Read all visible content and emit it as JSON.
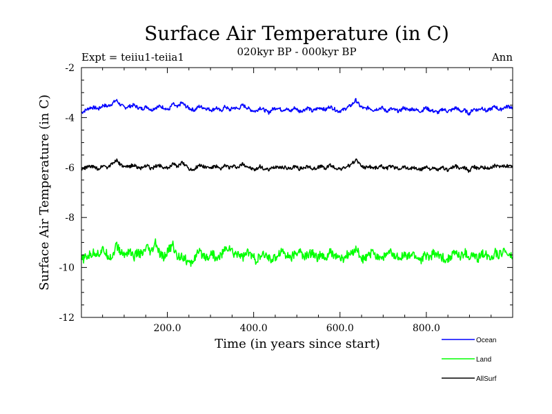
{
  "chart_data": {
    "type": "line",
    "title": "Surface Air Temperature (in C)",
    "subtitle": "020kyr BP - 000kyr BP",
    "annotation_left": "Expt = teiiu1-teiia1",
    "annotation_right": "Ann",
    "xlabel": "Time (in years since start)",
    "ylabel": "Surface Air Temperature (in C)",
    "xlim": [
      1,
      1000
    ],
    "ylim": [
      -12,
      -2
    ],
    "x_ticks": [
      "200.0",
      "400.0",
      "600.0",
      "800.0"
    ],
    "y_ticks": [
      "-2",
      "-4",
      "-6",
      "-8",
      "-10",
      "-12"
    ],
    "grid": false,
    "legend_position": "bottom-right",
    "series": [
      {
        "name": "Ocean",
        "color": "#0000ff",
        "values": [
          -3.8,
          -3.7,
          -3.6,
          -3.6,
          -3.65,
          -3.5,
          -3.55,
          -3.45,
          -3.3,
          -3.5,
          -3.6,
          -3.55,
          -3.5,
          -3.6,
          -3.65,
          -3.55,
          -3.7,
          -3.6,
          -3.55,
          -3.6,
          -3.7,
          -3.45,
          -3.6,
          -3.4,
          -3.55,
          -3.65,
          -3.7,
          -3.55,
          -3.6,
          -3.65,
          -3.7,
          -3.6,
          -3.75,
          -3.55,
          -3.7,
          -3.6,
          -3.65,
          -3.5,
          -3.6,
          -3.7,
          -3.75,
          -3.6,
          -3.7,
          -3.8,
          -3.65,
          -3.6,
          -3.7,
          -3.65,
          -3.75,
          -3.6,
          -3.75,
          -3.7,
          -3.6,
          -3.75,
          -3.65,
          -3.6,
          -3.7,
          -3.55,
          -3.65,
          -3.75,
          -3.7,
          -3.6,
          -3.5,
          -3.3,
          -3.55,
          -3.65,
          -3.6,
          -3.7,
          -3.65,
          -3.6,
          -3.75,
          -3.65,
          -3.7,
          -3.75,
          -3.6,
          -3.7,
          -3.65,
          -3.7,
          -3.75,
          -3.6,
          -3.7,
          -3.75,
          -3.8,
          -3.65,
          -3.75,
          -3.7,
          -3.6,
          -3.75,
          -3.7,
          -3.85,
          -3.65,
          -3.7,
          -3.6,
          -3.75,
          -3.65,
          -3.55,
          -3.7,
          -3.6,
          -3.55,
          -3.6
        ]
      },
      {
        "name": "Land",
        "color": "#00ff00",
        "values": [
          -9.7,
          -9.6,
          -9.5,
          -9.4,
          -9.45,
          -9.3,
          -9.5,
          -9.6,
          -9.1,
          -9.4,
          -9.5,
          -9.3,
          -9.6,
          -9.4,
          -9.5,
          -9.2,
          -9.45,
          -9.0,
          -9.5,
          -9.6,
          -9.3,
          -9.1,
          -9.6,
          -9.5,
          -9.7,
          -9.9,
          -9.6,
          -9.4,
          -9.5,
          -9.6,
          -9.4,
          -9.7,
          -9.5,
          -9.3,
          -9.2,
          -9.5,
          -9.4,
          -9.6,
          -9.4,
          -9.5,
          -9.7,
          -9.6,
          -9.5,
          -9.6,
          -9.7,
          -9.5,
          -9.3,
          -9.5,
          -9.6,
          -9.5,
          -9.3,
          -9.6,
          -9.5,
          -9.4,
          -9.6,
          -9.5,
          -9.7,
          -9.4,
          -9.5,
          -9.6,
          -9.7,
          -9.5,
          -9.5,
          -9.2,
          -9.6,
          -9.7,
          -9.5,
          -9.4,
          -9.55,
          -9.6,
          -9.5,
          -9.4,
          -9.6,
          -9.55,
          -9.5,
          -9.6,
          -9.45,
          -9.6,
          -9.7,
          -9.5,
          -9.6,
          -9.4,
          -9.55,
          -9.6,
          -9.7,
          -9.5,
          -9.4,
          -9.6,
          -9.4,
          -9.6,
          -9.5,
          -9.7,
          -9.4,
          -9.5,
          -9.6,
          -9.4,
          -9.5,
          -9.3,
          -9.5,
          -9.6
        ]
      },
      {
        "name": "AllSurf",
        "color": "#000000",
        "values": [
          -6.1,
          -6.0,
          -5.95,
          -6.0,
          -6.05,
          -5.9,
          -6.0,
          -5.85,
          -5.7,
          -5.9,
          -6.0,
          -5.95,
          -5.9,
          -6.0,
          -6.05,
          -5.9,
          -6.05,
          -5.95,
          -5.9,
          -6.0,
          -6.05,
          -5.8,
          -6.0,
          -5.8,
          -5.9,
          -6.1,
          -6.05,
          -5.9,
          -5.95,
          -6.0,
          -6.0,
          -5.95,
          -6.1,
          -5.9,
          -6.0,
          -5.95,
          -6.0,
          -5.85,
          -5.95,
          -6.05,
          -6.1,
          -5.95,
          -6.05,
          -6.1,
          -6.0,
          -5.95,
          -6.0,
          -6.0,
          -6.05,
          -5.95,
          -6.05,
          -6.0,
          -5.95,
          -6.05,
          -6.0,
          -5.95,
          -6.05,
          -5.9,
          -6.0,
          -6.05,
          -6.05,
          -5.95,
          -5.9,
          -5.65,
          -5.9,
          -6.0,
          -5.95,
          -6.0,
          -6.0,
          -5.95,
          -6.05,
          -5.95,
          -6.0,
          -6.05,
          -5.95,
          -6.05,
          -6.0,
          -6.05,
          -6.1,
          -5.95,
          -6.05,
          -6.05,
          -6.1,
          -6.0,
          -6.1,
          -6.0,
          -5.95,
          -6.05,
          -6.0,
          -6.15,
          -5.95,
          -6.05,
          -5.95,
          -6.05,
          -6.0,
          -5.9,
          -6.0,
          -5.95,
          -5.9,
          -5.95
        ]
      }
    ]
  }
}
